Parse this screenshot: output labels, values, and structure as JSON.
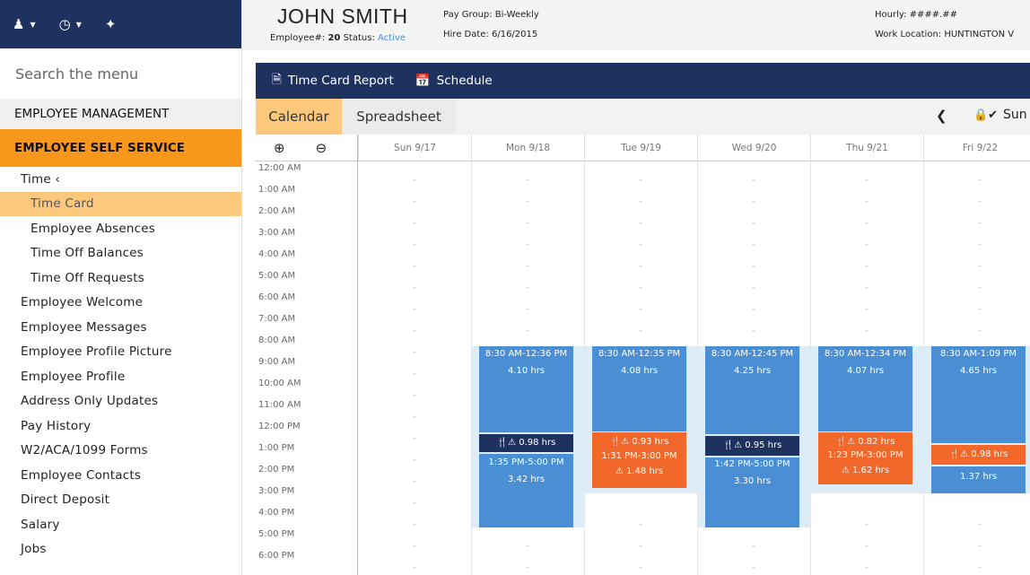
{
  "sidebar": {
    "top_icons": [
      "user-icon",
      "clock-icon",
      "pin-icon"
    ],
    "search_placeholder": "Search the menu",
    "sections": [
      {
        "label": "EMPLOYEE MANAGEMENT"
      },
      {
        "label": "EMPLOYEE SELF SERVICE"
      }
    ],
    "items": [
      {
        "label": "Time  ‹"
      },
      {
        "label": "Time Card"
      },
      {
        "label": "Employee Absences"
      },
      {
        "label": "Time Off Balances"
      },
      {
        "label": "Time Off Requests"
      },
      {
        "label": "Employee Welcome"
      },
      {
        "label": "Employee Messages"
      },
      {
        "label": "Employee Profile Picture"
      },
      {
        "label": "Employee Profile"
      },
      {
        "label": "Address Only Updates"
      },
      {
        "label": "Pay History"
      },
      {
        "label": "W2/ACA/1099 Forms"
      },
      {
        "label": "Employee Contacts"
      },
      {
        "label": "Direct Deposit"
      },
      {
        "label": "Salary"
      },
      {
        "label": "Jobs"
      }
    ]
  },
  "header": {
    "name": "JOHN SMITH",
    "employee_label": "Employee#:",
    "employee_no": "20",
    "status_label": "Status:",
    "status": "Active",
    "pay_group": "Pay Group: Bi-Weekly",
    "hire_date": "Hire Date: 6/16/2015",
    "hourly": "Hourly: ####.##",
    "work_location": "Work Location: HUNTINGTON V"
  },
  "toolbar": {
    "report": "Time Card Report",
    "schedule": "Schedule"
  },
  "tabs": {
    "calendar": "Calendar",
    "spreadsheet": "Spreadsheet",
    "prev": "❮",
    "lock": "🔒✔",
    "next_label": "Sun"
  },
  "days": [
    "Sun 9/17",
    "Mon 9/18",
    "Tue 9/19",
    "Wed 9/20",
    "Thu 9/21",
    "Fri 9/22"
  ],
  "times": [
    "12:00 AM",
    "1:00 AM",
    "2:00 AM",
    "3:00 AM",
    "4:00 AM",
    "5:00 AM",
    "6:00 AM",
    "7:00 AM",
    "8:00 AM",
    "9:00 AM",
    "10:00 AM",
    "11:00 AM",
    "12:00 PM",
    "1:00 PM",
    "2:00 PM",
    "3:00 PM",
    "4:00 PM",
    "5:00 PM",
    "6:00 PM"
  ],
  "empty_mark": "-",
  "entries": {
    "mon": {
      "in": "8:30 AM-12:36 PM",
      "in_hrs": "4.10 hrs",
      "break": "🍴⚠ 0.98 hrs",
      "out": "1:35 PM-5:00 PM",
      "out_hrs": "3.42 hrs"
    },
    "tue": {
      "in": "8:30 AM-12:35 PM",
      "in_hrs": "4.08 hrs",
      "break": "🍴⚠ 0.93 hrs",
      "out": "1:31 PM-3:00 PM",
      "out_hrs": "⚠ 1.48 hrs"
    },
    "wed": {
      "in": "8:30 AM-12:45 PM",
      "in_hrs": "4.25 hrs",
      "break": "🍴⚠ 0.95 hrs",
      "out": "1:42 PM-5:00 PM",
      "out_hrs": "3.30 hrs"
    },
    "thu": {
      "in": "8:30 AM-12:34 PM",
      "in_hrs": "4.07 hrs",
      "break": "🍴⚠ 0.82 hrs",
      "out": "1:23 PM-3:00 PM",
      "out_hrs": "⚠ 1.62 hrs"
    },
    "fri": {
      "in": "8:30 AM-1:09 PM",
      "in_hrs": "4.65 hrs",
      "break": "🍴⚠ 0.98 hrs",
      "out_hrs": "1.37 hrs"
    }
  }
}
